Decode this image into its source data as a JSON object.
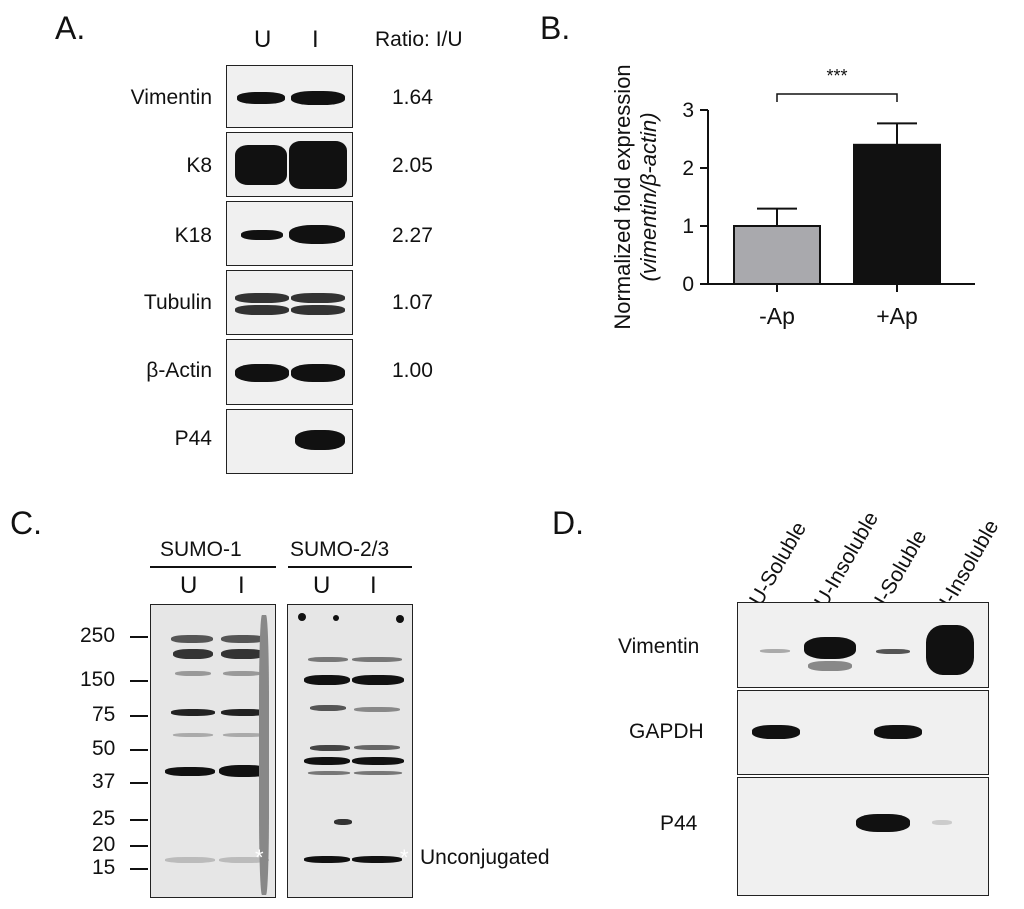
{
  "panel_a": {
    "letter": "A.",
    "lanes": [
      "U",
      "I"
    ],
    "ratio_header": "Ratio: I/U",
    "rows": [
      {
        "label": "Vimentin",
        "ratio": "1.64"
      },
      {
        "label": "K8",
        "ratio": "2.05"
      },
      {
        "label": "K18",
        "ratio": "2.27"
      },
      {
        "label": "Tubulin",
        "ratio": "1.07"
      },
      {
        "label": "β-Actin",
        "ratio": "1.00"
      },
      {
        "label": "P44",
        "ratio": ""
      }
    ]
  },
  "panel_b": {
    "letter": "B.",
    "significance": "***",
    "ylabel_line1": "Normalized fold expression",
    "ylabel_line2": "(vimentin/β-actin)"
  },
  "chart_data": {
    "type": "bar",
    "categories": [
      "-Ap",
      "+Ap"
    ],
    "values": [
      1.0,
      2.4
    ],
    "errors": [
      0.3,
      0.37
    ],
    "bar_colors": [
      "#a9a9ad",
      "#111111"
    ],
    "ylim": [
      0,
      3
    ],
    "yticks": [
      "0",
      "1",
      "2",
      "3"
    ],
    "ylabel": "Normalized fold expression (vimentin/β-actin)",
    "annotation": "***"
  },
  "panel_c": {
    "letter": "C.",
    "groups": [
      {
        "label": "SUMO-1",
        "lanes": [
          "U",
          "I"
        ]
      },
      {
        "label": "SUMO-2/3",
        "lanes": [
          "U",
          "I"
        ]
      }
    ],
    "mw_markers": [
      "250",
      "150",
      "75",
      "50",
      "37",
      "25",
      "20",
      "15"
    ],
    "asterisk": "*",
    "unconjugated_label": "Unconjugated"
  },
  "panel_d": {
    "letter": "D.",
    "columns": [
      "U-Soluble",
      "U-Insoluble",
      "I-Soluble",
      "I-Insoluble"
    ],
    "rows": [
      "Vimentin",
      "GAPDH",
      "P44"
    ]
  }
}
